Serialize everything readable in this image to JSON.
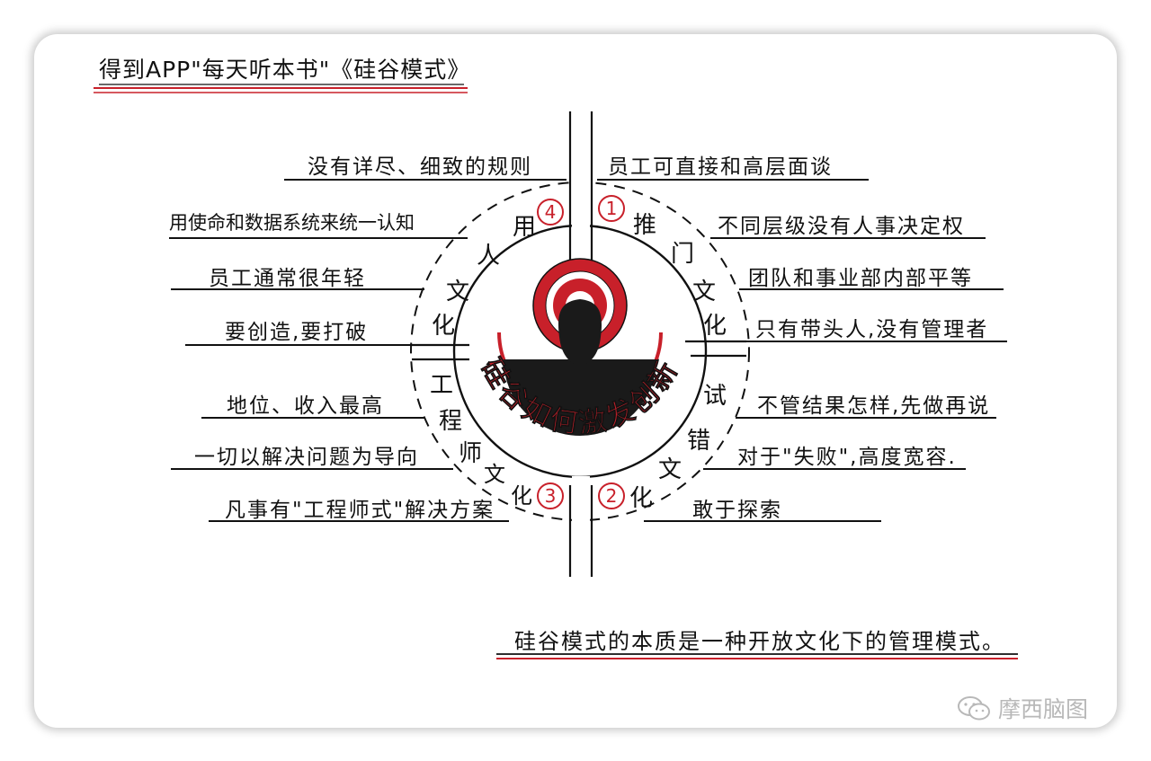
{
  "header": {
    "title": "得到APP\"每天听本书\"《硅谷模式》"
  },
  "center": {
    "text": "硅谷如何激发创新"
  },
  "quadrants": [
    {
      "number": "①",
      "name": "推门文化",
      "chars": [
        "推",
        "门",
        "文",
        "化"
      ],
      "items": [
        "员工可直接和高层面谈",
        "不同层级没有人事决定权",
        "团队和事业部内部平等",
        "只有带头人,没有管理者"
      ]
    },
    {
      "number": "②",
      "name": "试错文化",
      "chars": [
        "试",
        "错",
        "文",
        "化"
      ],
      "items": [
        "不管结果怎样,先做再说",
        "对于\"失败\",高度宽容.",
        "敢于探索"
      ]
    },
    {
      "number": "③",
      "name": "工程师文化",
      "chars": [
        "工",
        "程",
        "师",
        "文",
        "化"
      ],
      "items": [
        "地位、收入最高",
        "一切以解决问题为导向",
        "凡事有\"工程师式\"解决方案"
      ]
    },
    {
      "number": "④",
      "name": "用人文化",
      "chars": [
        "用",
        "人",
        "文",
        "化"
      ],
      "items": [
        "没有详尽、细致的规则",
        "用使命和数据系统来统一认知",
        "员工通常很年轻",
        "要创造,要打破"
      ]
    }
  ],
  "summary": "硅谷模式的本质是一种开放文化下的管理模式。",
  "watermark": "摩西脑图",
  "colors": {
    "accent": "#c8202a",
    "ink": "#111111"
  }
}
